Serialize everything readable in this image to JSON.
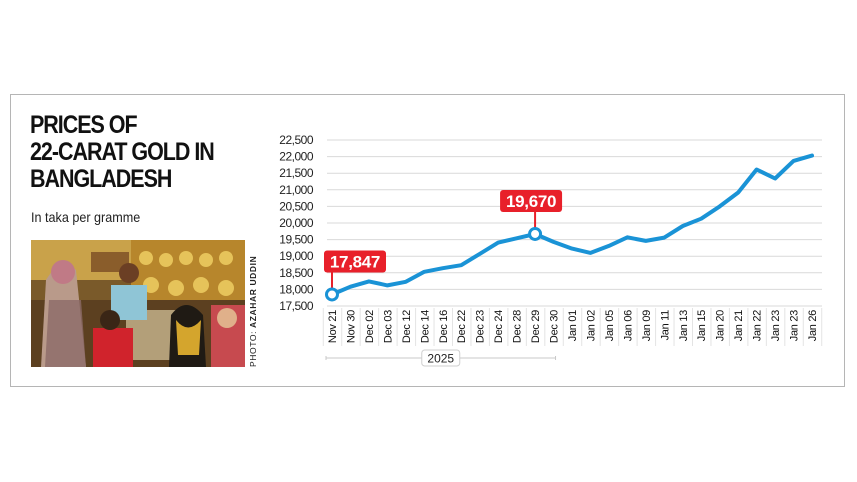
{
  "header": {
    "title_lines": [
      "PRICES OF",
      "22-CARAT GOLD IN",
      "BANGLADESH"
    ],
    "subtitle": "In taka per gramme"
  },
  "photo": {
    "description": "Customers at a gold jewellery shop counter",
    "credit_prefix": "PHOTO: ",
    "credit_name": "AZAHAR UDDIN"
  },
  "colors": {
    "line": "#1a93d6",
    "callout": "#e8202a",
    "grid": "#d9d9d9",
    "border": "#b5b5b5"
  },
  "chart_data": {
    "type": "line",
    "title": "Prices of 22-carat gold in Bangladesh",
    "subtitle": "In taka per gramme",
    "xlabel": "",
    "ylabel": "Taka per gramme",
    "categories": [
      "Nov 21",
      "Nov 30",
      "Dec 02",
      "Dec 03",
      "Dec 12",
      "Dec 14",
      "Dec 16",
      "Dec 22",
      "Dec 23",
      "Dec 24",
      "Dec 28",
      "Dec 29",
      "Dec 30",
      "Jan 01",
      "Jan 02",
      "Jan 05",
      "Jan 06",
      "Jan 09",
      "Jan 11",
      "Jan 13",
      "Jan 15",
      "Jan 20",
      "Jan 21",
      "Jan 22",
      "Jan 23",
      "Jan 23",
      "Jan 26"
    ],
    "values": [
      17847,
      18080,
      18240,
      18120,
      18230,
      18530,
      18640,
      18730,
      19070,
      19410,
      19540,
      19670,
      19430,
      19230,
      19100,
      19310,
      19570,
      19460,
      19560,
      19910,
      20130,
      20500,
      20920,
      21610,
      21340,
      21870,
      22030
    ],
    "yticks": [
      17500,
      18000,
      18500,
      19000,
      19500,
      20000,
      20500,
      21000,
      21500,
      22000,
      22500
    ],
    "ytick_labels": [
      "17,500",
      "18,000",
      "18,500",
      "19,000",
      "19,500",
      "20,000",
      "20,500",
      "21,000",
      "21,500",
      "22,000",
      "22,500"
    ],
    "ylim": [
      17500,
      22500
    ],
    "grid": true,
    "legend": null,
    "annotations": [
      {
        "index": 0,
        "label": "17,847"
      },
      {
        "index": 11,
        "label": "19,670"
      }
    ],
    "year_group": {
      "label": "2025",
      "from_index": 0,
      "to_index": 12
    }
  }
}
